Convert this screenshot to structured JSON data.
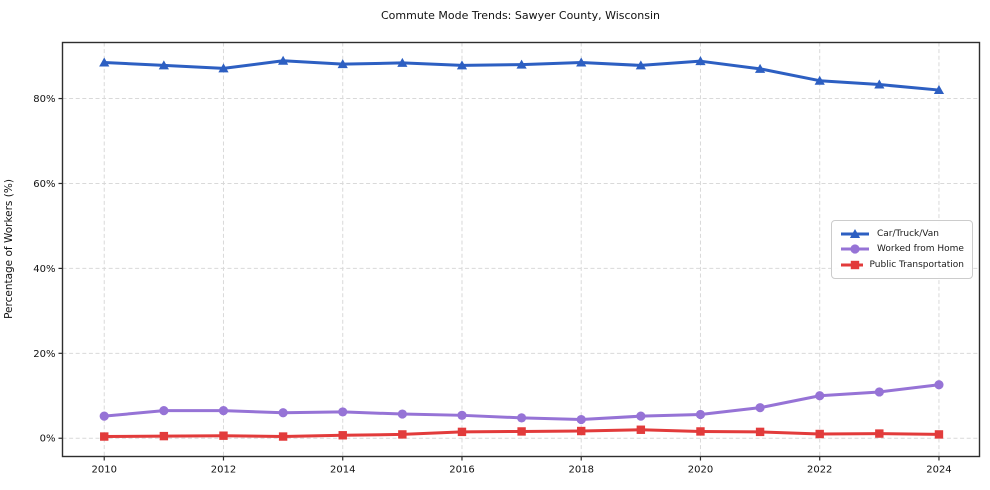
{
  "title": "Commute Mode Trends: Sawyer County, Wisconsin",
  "colors": {
    "car_truck_van": "#2d5fc2",
    "worked_from_home": "#9673d6",
    "public_transportation": "#e23b3b",
    "grid": "#d9d9d9",
    "spine": "#2e2e2e",
    "text": "#111111",
    "legend_border": "#cccccc"
  },
  "chart_data": {
    "type": "line",
    "title": "Commute Mode Trends: Sawyer County, Wisconsin",
    "xlabel": "",
    "ylabel": "Percentage of Workers (%)",
    "x": [
      2010,
      2011,
      2012,
      2013,
      2014,
      2015,
      2016,
      2017,
      2018,
      2019,
      2020,
      2021,
      2022,
      2023,
      2024
    ],
    "series": [
      {
        "name": "Car/Truck/Van",
        "color": "#2d5fc2",
        "marker": "triangle",
        "values": [
          88.5,
          87.8,
          87.1,
          88.9,
          88.1,
          88.4,
          87.8,
          88.0,
          88.5,
          87.8,
          88.8,
          87.0,
          84.2,
          83.3,
          82.0
        ]
      },
      {
        "name": "Worked from Home",
        "color": "#9673d6",
        "marker": "circle",
        "values": [
          5.2,
          6.5,
          6.5,
          6.0,
          6.2,
          5.7,
          5.4,
          4.8,
          4.4,
          5.2,
          5.6,
          7.2,
          10.0,
          10.9,
          12.6
        ]
      },
      {
        "name": "Public Transportation",
        "color": "#e23b3b",
        "marker": "square",
        "values": [
          0.4,
          0.5,
          0.6,
          0.4,
          0.7,
          0.9,
          1.5,
          1.6,
          1.7,
          2.0,
          1.6,
          1.5,
          1.0,
          1.1,
          0.9
        ]
      }
    ],
    "xticks": [
      2010,
      2012,
      2014,
      2016,
      2018,
      2020,
      2022,
      2024
    ],
    "xtick_labels": [
      "2010",
      "2012",
      "2014",
      "2016",
      "2018",
      "2020",
      "2022",
      "2024"
    ],
    "yticks": [
      0,
      20,
      40,
      60,
      80
    ],
    "ytick_labels": [
      "0%",
      "20%",
      "40%",
      "60%",
      "80%"
    ],
    "xlim": [
      2009.3,
      2024.68
    ],
    "ylim": [
      -4.3,
      93.2
    ],
    "grid": true,
    "grid_style": "dashed",
    "legend_position": "center right"
  }
}
